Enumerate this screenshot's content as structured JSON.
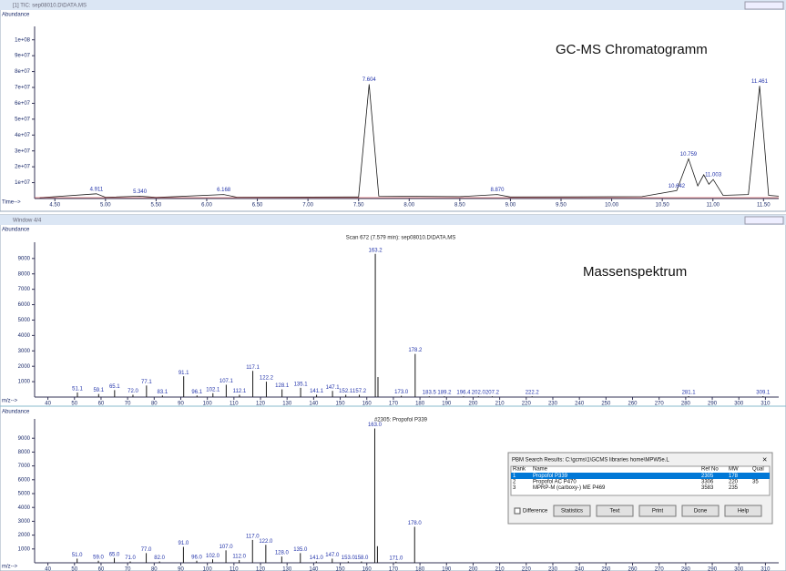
{
  "windows": [
    {
      "title": "[1] TIC: sep08010.D\\DATA.MS"
    },
    {
      "title": "Window 4/4"
    }
  ],
  "annotations": [
    "GC-MS Chromatogramm",
    "Massenspektrum"
  ],
  "chart_data": [
    {
      "type": "line",
      "ylabel": "Abundance",
      "xlabel": "Time-->",
      "color": "#1a1a1a",
      "x": [
        4.35,
        4.911,
        5.0,
        5.34,
        5.5,
        6.168,
        6.3,
        7.5,
        7.604,
        7.7,
        8.5,
        8.87,
        9.0,
        10.3,
        10.642,
        10.759,
        10.85,
        10.91,
        10.96,
        11.003,
        11.1,
        11.35,
        11.461,
        11.55,
        11.65
      ],
      "values": [
        500000,
        3000000,
        800000,
        1500000,
        700000,
        2500000,
        800000,
        1000000,
        72000000,
        1500000,
        1200000,
        2500000,
        1000000,
        1200000,
        5000000,
        25000000,
        8000000,
        15000000,
        9000000,
        12000000,
        2000000,
        2500000,
        71000000,
        2000000,
        1500000
      ],
      "value_labels": [
        null,
        "4.911",
        null,
        "5.340",
        null,
        "6.168",
        null,
        null,
        "7.604",
        null,
        null,
        "8.870",
        null,
        null,
        "10.642",
        "10.759",
        null,
        null,
        null,
        "11.003",
        null,
        null,
        "11.461",
        null,
        null
      ],
      "xlim": [
        4.3,
        11.65
      ],
      "ylim": [
        0,
        105000000
      ],
      "xticks": [
        {
          "value": 4.5,
          "label": "4.50"
        },
        {
          "value": 5,
          "label": "5.00"
        },
        {
          "value": 5.5,
          "label": "5.50"
        },
        {
          "value": 6,
          "label": "6.00"
        },
        {
          "value": 6.5,
          "label": "6.50"
        },
        {
          "value": 7,
          "label": "7.00"
        },
        {
          "value": 7.5,
          "label": "7.50"
        },
        {
          "value": 8,
          "label": "8.00"
        },
        {
          "value": 8.5,
          "label": "8.50"
        },
        {
          "value": 9,
          "label": "9.00"
        },
        {
          "value": 9.5,
          "label": "9.50"
        },
        {
          "value": 10,
          "label": "10.00"
        },
        {
          "value": 10.5,
          "label": "10.50"
        },
        {
          "value": 11,
          "label": "11.00"
        },
        {
          "value": 11.5,
          "label": "11.50"
        }
      ],
      "yticks": [
        {
          "value": 10000000,
          "label": "1e+07"
        },
        {
          "value": 20000000,
          "label": "2e+07"
        },
        {
          "value": 30000000,
          "label": "3e+07"
        },
        {
          "value": 40000000,
          "label": "4e+07"
        },
        {
          "value": 50000000,
          "label": "5e+07"
        },
        {
          "value": 60000000,
          "label": "6e+07"
        },
        {
          "value": 70000000,
          "label": "7e+07"
        },
        {
          "value": 80000000,
          "label": "8e+07"
        },
        {
          "value": 90000000,
          "label": "9e+07"
        },
        {
          "value": 100000000,
          "label": "1e+08"
        }
      ]
    },
    {
      "type": "stem",
      "title": "Scan 672 (7.579 min): sep08010.D\\DATA.MS",
      "ylabel": "Abundance",
      "xlabel": "m/z-->",
      "color": "#1a1a1a",
      "x": [
        51.1,
        59.1,
        65.1,
        72,
        77.1,
        83.1,
        91.1,
        96.1,
        102.1,
        107.1,
        112.1,
        117.1,
        122.2,
        128.1,
        135.1,
        141.1,
        147.1,
        152.1,
        157.2,
        163.2,
        164.2,
        173,
        178.2,
        183.5,
        189.2,
        196.4,
        202,
        207.2,
        222.2,
        281.1,
        309.1
      ],
      "values": [
        300,
        200,
        450,
        150,
        750,
        100,
        1350,
        100,
        250,
        800,
        150,
        1700,
        1000,
        500,
        600,
        150,
        400,
        150,
        150,
        9300,
        1300,
        80,
        2800,
        50,
        50,
        50,
        50,
        50,
        50,
        60,
        60
      ],
      "peak_labels": [
        "51.1",
        "59.1",
        "65.1",
        "72.0",
        "77.1",
        "83.1",
        "91.1",
        "96.1",
        "102.1",
        "107.1",
        "112.1",
        "117.1",
        "122.2",
        "128.1",
        "135.1",
        "141.1",
        "147.1",
        "152.1",
        "157.2",
        "163.2",
        null,
        "173.0",
        "178.2",
        "183.5",
        "189.2",
        "196.4",
        "202.0",
        "207.2",
        "222.2",
        "281.1",
        "309.1"
      ],
      "xlim": [
        35,
        315
      ],
      "ylim": [
        0,
        9700
      ],
      "xticks": [
        40,
        50,
        60,
        70,
        80,
        90,
        100,
        110,
        120,
        130,
        140,
        150,
        160,
        170,
        180,
        190,
        200,
        210,
        220,
        230,
        240,
        250,
        260,
        270,
        280,
        290,
        300,
        310
      ],
      "yticks": [
        1000,
        2000,
        3000,
        4000,
        5000,
        6000,
        7000,
        8000,
        9000
      ]
    },
    {
      "type": "stem",
      "title": "#2305: Propofol P339",
      "ylabel": "Abundance",
      "xlabel": "m/z-->",
      "color": "#1a1a1a",
      "x": [
        51,
        59,
        65,
        71,
        77,
        82,
        91,
        96,
        102,
        107,
        112,
        117,
        122,
        128,
        135,
        141,
        147,
        153,
        158,
        163,
        164,
        171,
        178
      ],
      "values": [
        300,
        150,
        350,
        100,
        700,
        100,
        1150,
        150,
        250,
        900,
        200,
        1650,
        1300,
        450,
        700,
        100,
        300,
        100,
        100,
        9700,
        1200,
        80,
        2600
      ],
      "peak_labels": [
        "51.0",
        "59.0",
        "65.0",
        "71.0",
        "77.0",
        "82.0",
        "91.0",
        "96.0",
        "102.0",
        "107.0",
        "112.0",
        "117.0",
        "122.0",
        "128.0",
        "135.0",
        "141.0",
        "147.0",
        "153.0",
        "158.0",
        "163.0",
        null,
        "171.0",
        "178.0"
      ],
      "xlim": [
        35,
        315
      ],
      "ylim": [
        0,
        10000
      ],
      "xticks": [
        40,
        50,
        60,
        70,
        80,
        90,
        100,
        110,
        120,
        130,
        140,
        150,
        160,
        170,
        180,
        190,
        200,
        210,
        220,
        230,
        240,
        250,
        260,
        270,
        280,
        290,
        300,
        310
      ],
      "yticks": [
        1000,
        2000,
        3000,
        4000,
        5000,
        6000,
        7000,
        8000,
        9000
      ]
    }
  ],
  "dialog": {
    "title": "PBM Search Results: C:\\gcms\\1\\GCMS libraries home\\MPW5e.L",
    "columns": [
      "Rank",
      "Name",
      "Ref No",
      "MW",
      "Qual"
    ],
    "rows": [
      [
        "1",
        "Propofol P339",
        "2305",
        "178"
      ],
      [
        "2",
        "Propofol AC P470",
        "3306",
        "220",
        "35"
      ],
      [
        "3",
        "MPRP-M (carboxy-) ME P469",
        "3583",
        "235"
      ]
    ],
    "checkbox": "Difference",
    "buttons": [
      "Statistics",
      "Text",
      "Print",
      "Done",
      "Help"
    ]
  }
}
